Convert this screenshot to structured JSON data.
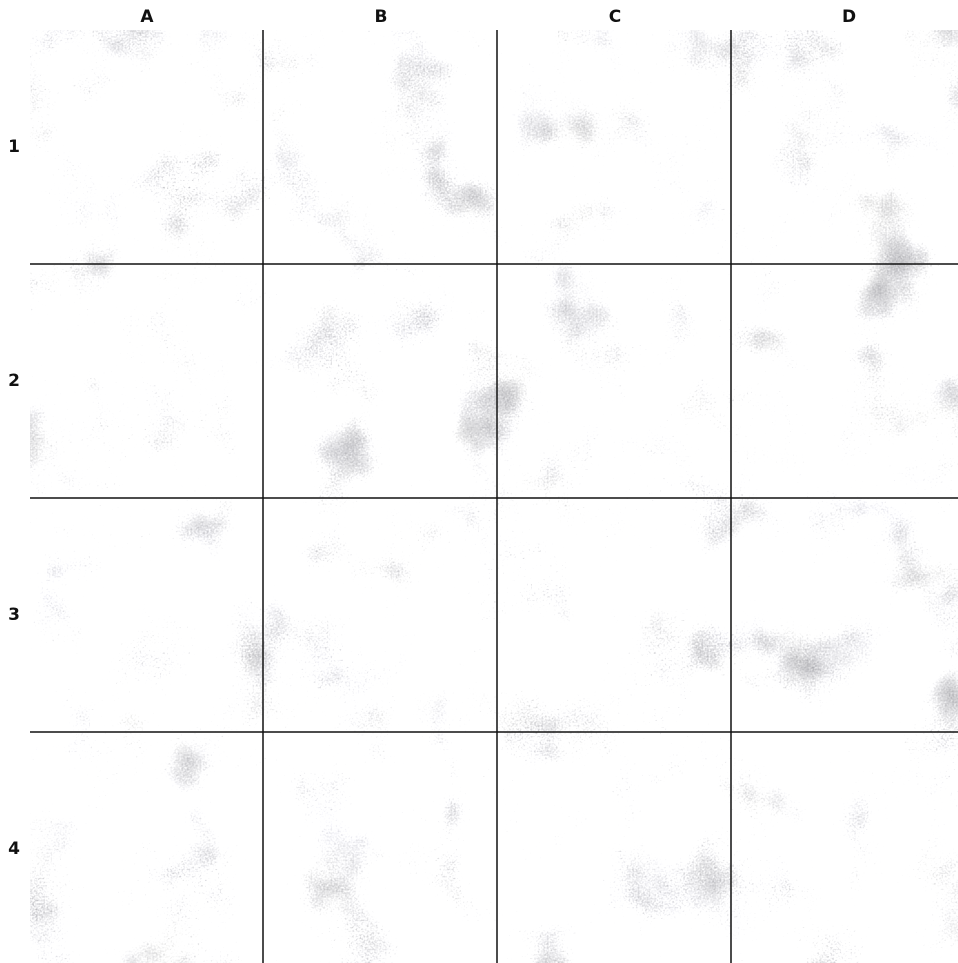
{
  "grid": {
    "columns": [
      "A",
      "B",
      "C",
      "D"
    ],
    "rows": [
      "1",
      "2",
      "3",
      "4"
    ]
  }
}
